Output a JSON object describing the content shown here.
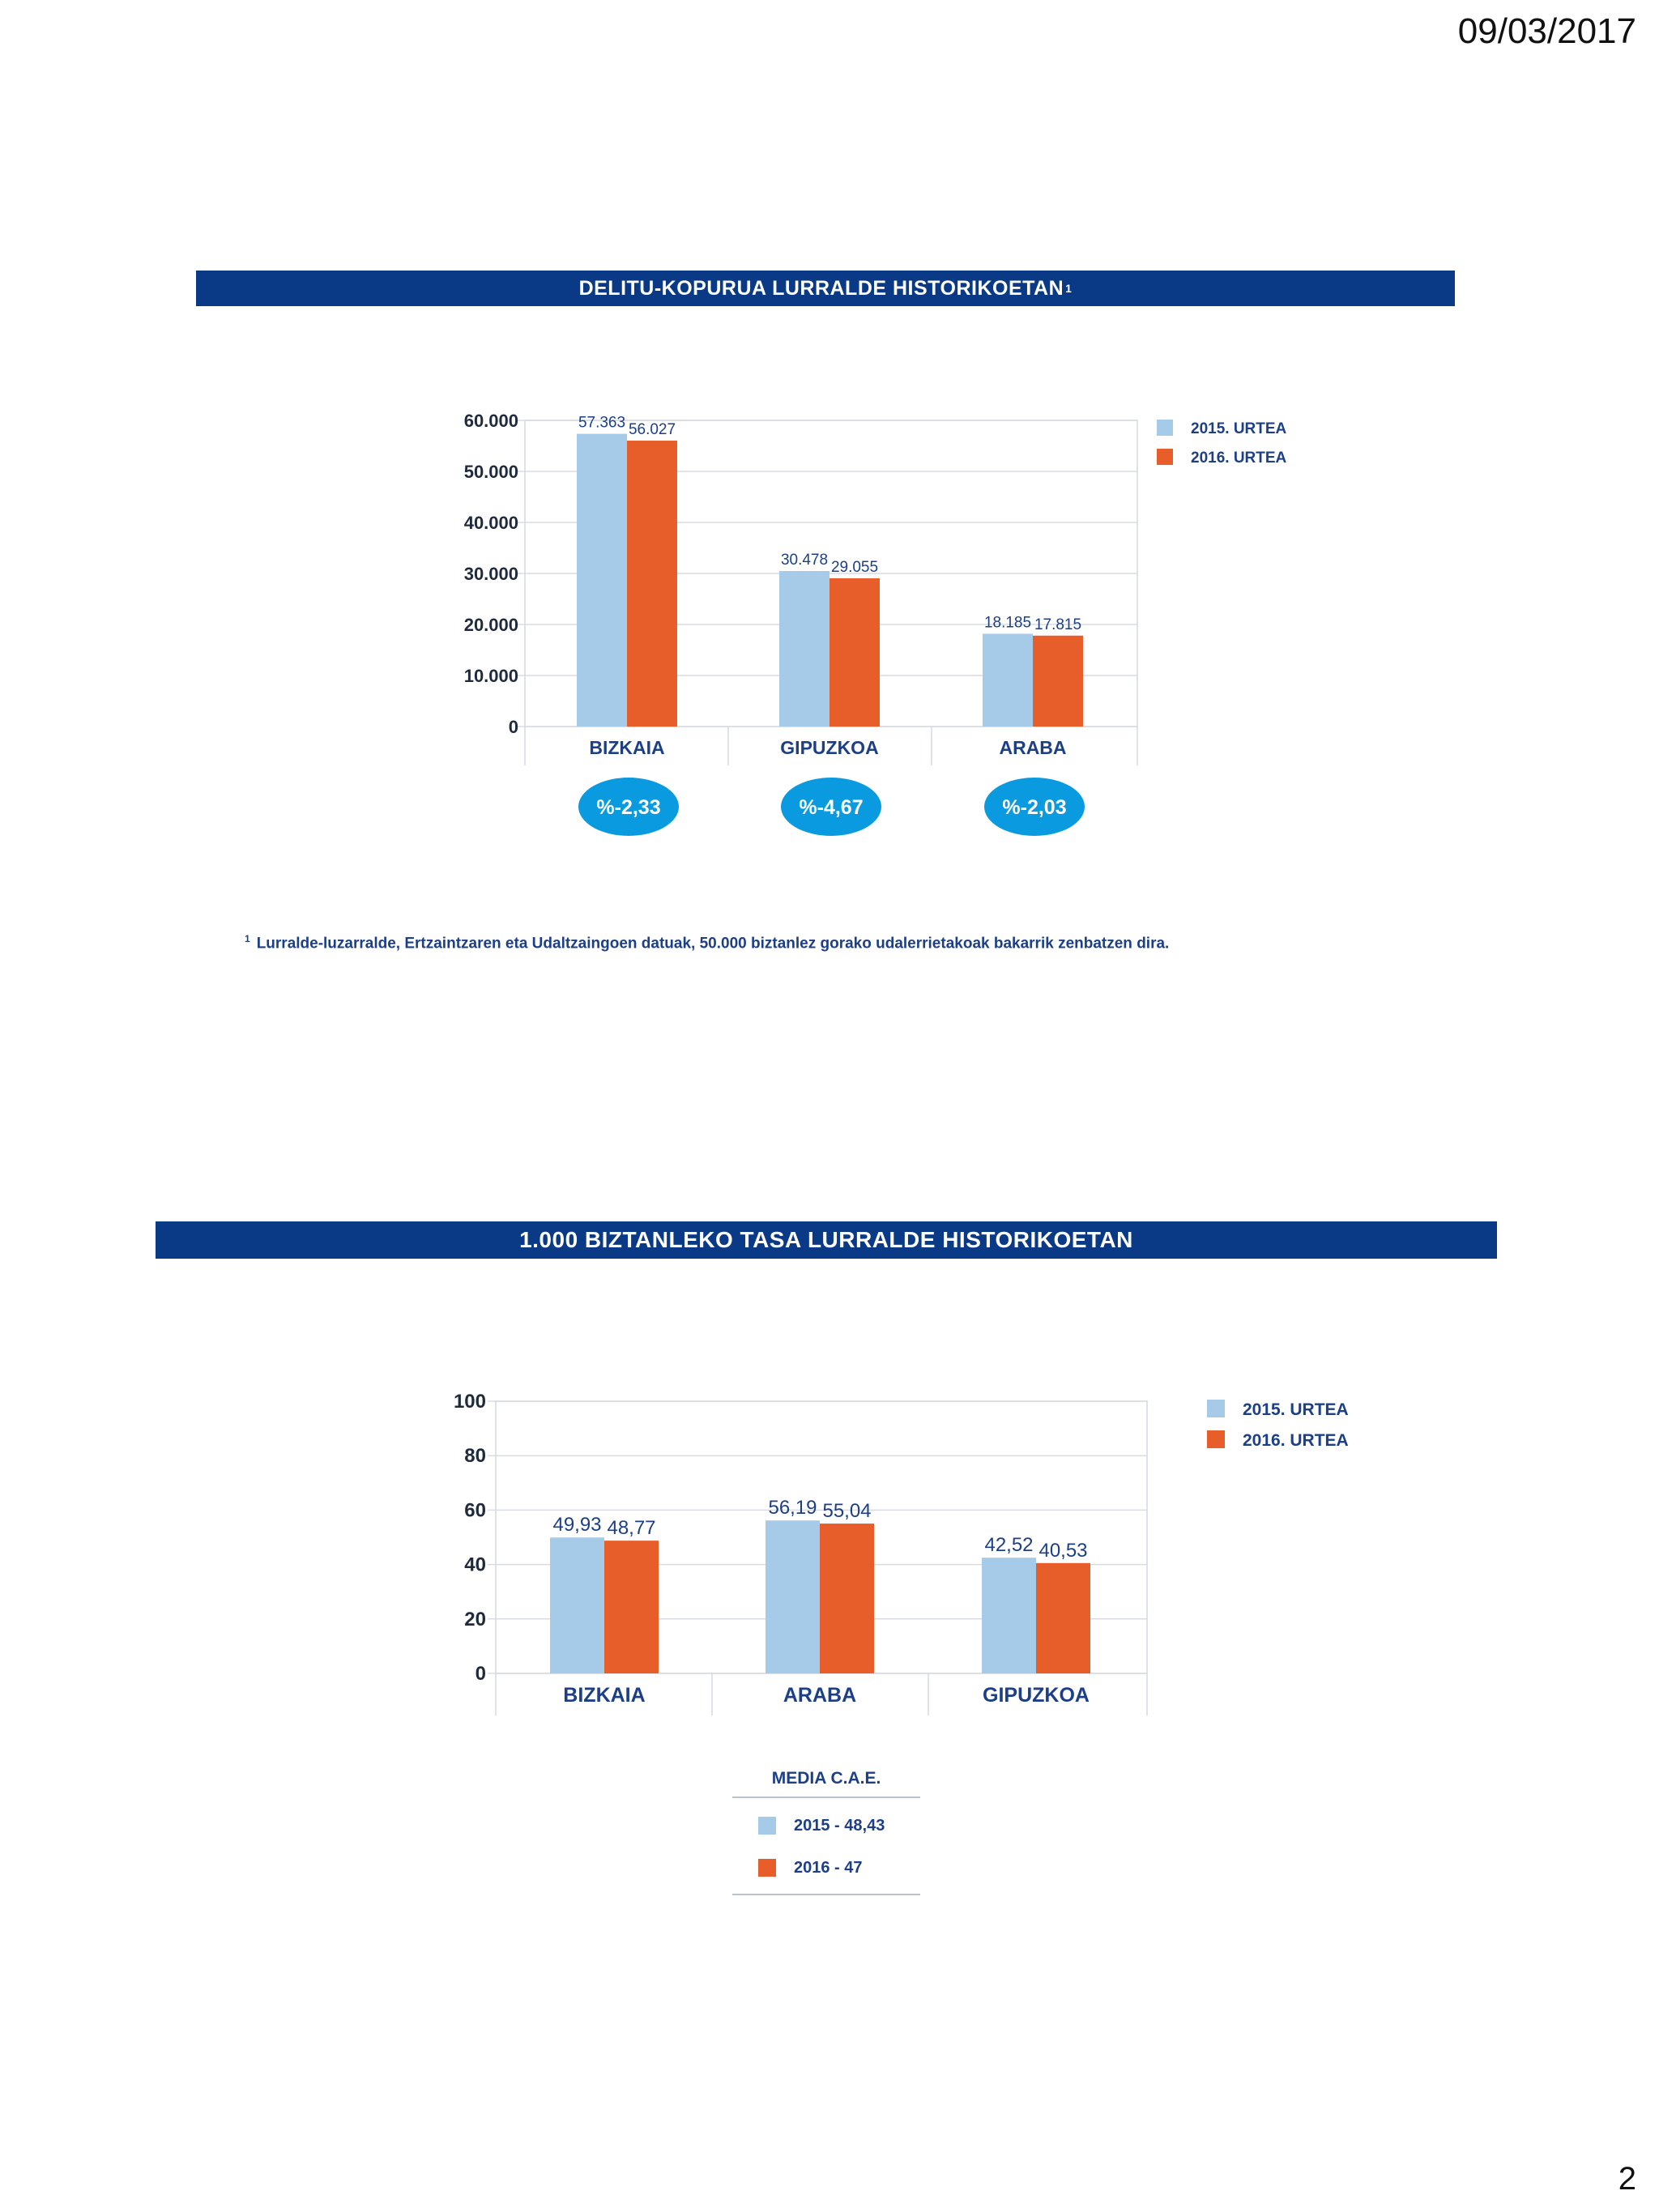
{
  "header": {
    "date": "09/03/2017"
  },
  "footer": {
    "page_number": "2"
  },
  "colors": {
    "series_2015": "#a5cbe8",
    "series_2016": "#e85e2a",
    "banner": "#0a3a85",
    "text": "#1c3f86",
    "bubble": "#0a9ae0"
  },
  "chart1": {
    "banner_title": "DELITU-KOPURUA LURRALDE HISTORIKOETAN",
    "banner_footnote_mark": "1",
    "footnote_mark": "1",
    "footnote": "Lurralde-luzarralde, Ertzaintzaren eta Udaltzaingoen datuak, 50.000 biztanlez gorako udalerrietakoak bakarrik zenbatzen dira."
  },
  "chart2": {
    "banner_title": "1.000 BIZTANLEKO TASA LURRALDE HISTORIKOETAN",
    "media": {
      "title": "MEDIA C.A.E.",
      "row_2015": "2015 - 48,43",
      "row_2016": "2016 - 47"
    }
  },
  "chart_data": [
    {
      "type": "bar",
      "title": "DELITU-KOPURUA LURRALDE HISTORIKOETAN",
      "categories": [
        "BIZKAIA",
        "GIPUZKOA",
        "ARABA"
      ],
      "series": [
        {
          "name": "2015. URTEA",
          "values": [
            57363,
            30478,
            18185
          ],
          "labels": [
            "57.363",
            "30.478",
            "18.185"
          ]
        },
        {
          "name": "2016. URTEA",
          "values": [
            56027,
            29055,
            17815
          ],
          "labels": [
            "56.027",
            "29.055",
            "17.815"
          ]
        }
      ],
      "ylim": [
        0,
        60000
      ],
      "yticks": [
        0,
        10000,
        20000,
        30000,
        40000,
        50000,
        60000
      ],
      "ytick_labels": [
        "0",
        "10.000",
        "20.000",
        "30.000",
        "40.000",
        "50.000",
        "60.000"
      ],
      "change_labels": [
        "%-2,33",
        "%-4,67",
        "%-2,03"
      ],
      "legend": "right"
    },
    {
      "type": "bar",
      "title": "1.000 BIZTANLEKO TASA LURRALDE HISTORIKOETAN",
      "categories": [
        "BIZKAIA",
        "ARABA",
        "GIPUZKOA"
      ],
      "series": [
        {
          "name": "2015. URTEA",
          "values": [
            49.93,
            56.19,
            42.52
          ],
          "labels": [
            "49,93",
            "56,19",
            "42,52"
          ]
        },
        {
          "name": "2016. URTEA",
          "values": [
            48.77,
            55.04,
            40.53
          ],
          "labels": [
            "48,77",
            "55,04",
            "40,53"
          ]
        }
      ],
      "ylim": [
        0,
        100
      ],
      "yticks": [
        0,
        20,
        40,
        60,
        80,
        100
      ],
      "ytick_labels": [
        "0",
        "20",
        "40",
        "60",
        "80",
        "100"
      ],
      "legend": "right"
    }
  ]
}
